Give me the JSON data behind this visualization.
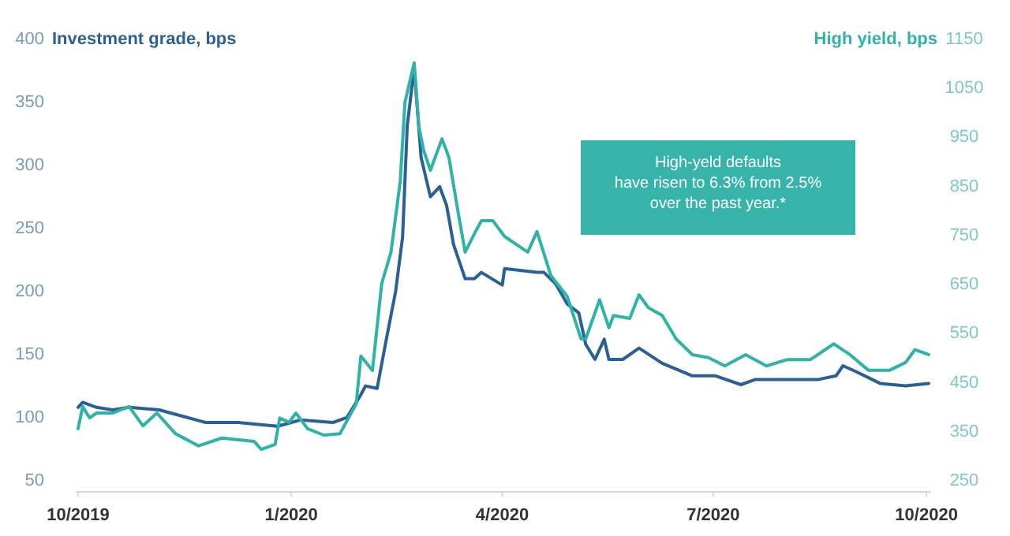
{
  "chart_data": {
    "type": "line",
    "ylabel": "Investment grade, bps",
    "y2label": "High yield, bps",
    "xlim": [
      "2019-09-30",
      "2020-10-03"
    ],
    "xticks": [
      {
        "value": "2019-10-01",
        "label": "10/2019"
      },
      {
        "value": "2020-01-01",
        "label": "1/2020"
      },
      {
        "value": "2020-04-01",
        "label": "4/2020"
      },
      {
        "value": "2020-07-01",
        "label": "7/2020"
      },
      {
        "value": "2020-10-01",
        "label": "10/2020"
      }
    ],
    "ylim": [
      50,
      400
    ],
    "yticks": [
      50,
      100,
      150,
      200,
      250,
      300,
      350,
      400
    ],
    "y2lim": [
      250,
      1150
    ],
    "y2ticks": [
      250,
      350,
      450,
      550,
      650,
      750,
      850,
      950,
      1050,
      1150
    ],
    "grid": false,
    "annotations": [
      "High-yeld defaults have risen to 6.3% from 2.5% over the past year.*"
    ],
    "series": [
      {
        "color": "#2b5f97",
        "x": [
          "2019-10-01",
          "2019-10-03",
          "2019-10-09",
          "2019-10-16",
          "2019-10-23",
          "2019-11-05",
          "2019-11-15",
          "2019-11-25",
          "2019-12-09",
          "2019-12-26",
          "2020-01-05",
          "2020-01-19",
          "2020-01-25",
          "2020-01-31",
          "2020-02-02",
          "2020-02-07",
          "2020-02-11",
          "2020-02-15",
          "2020-02-18",
          "2020-02-20",
          "2020-02-23",
          "2020-02-26",
          "2020-03-01",
          "2020-03-05",
          "2020-03-08",
          "2020-03-11",
          "2020-03-16",
          "2020-03-20",
          "2020-03-23",
          "2020-04-01",
          "2020-04-02",
          "2020-04-16",
          "2020-04-19",
          "2020-04-24",
          "2020-04-29",
          "2020-05-04",
          "2020-05-07",
          "2020-05-11",
          "2020-05-15",
          "2020-05-17",
          "2020-05-23",
          "2020-05-30",
          "2020-06-09",
          "2020-06-22",
          "2020-07-02",
          "2020-07-13",
          "2020-07-19",
          "2020-08-02",
          "2020-08-15",
          "2020-08-23",
          "2020-08-26",
          "2020-09-01",
          "2020-09-11",
          "2020-09-22",
          "2020-10-02"
        ],
        "values": [
          107,
          111,
          107,
          105,
          107,
          105,
          100,
          95,
          95,
          92,
          97,
          95,
          99,
          117,
          124,
          122,
          161,
          199,
          242,
          330,
          376,
          305,
          274,
          282,
          267,
          236,
          209,
          209,
          214,
          204,
          217,
          214,
          214,
          205,
          189,
          182,
          157,
          145,
          161,
          145,
          145,
          154,
          142,
          132,
          132,
          125,
          129,
          129,
          129,
          132,
          140,
          135,
          126,
          124,
          126
        ]
      },
      {
        "axis": "y2",
        "color": "#2fb3a8",
        "x": [
          "2019-10-01",
          "2019-10-03",
          "2019-10-06",
          "2019-10-09",
          "2019-10-16",
          "2019-10-23",
          "2019-10-29",
          "2019-11-04",
          "2019-11-12",
          "2019-11-22",
          "2019-12-02",
          "2019-12-16",
          "2019-12-19",
          "2019-12-25",
          "2019-12-27",
          "2019-12-31",
          "2020-01-03",
          "2020-01-08",
          "2020-01-15",
          "2020-01-22",
          "2020-01-29",
          "2020-01-31",
          "2020-02-05",
          "2020-02-09",
          "2020-02-13",
          "2020-02-17",
          "2020-02-19",
          "2020-02-23",
          "2020-02-25",
          "2020-02-27",
          "2020-03-01",
          "2020-03-06",
          "2020-03-09",
          "2020-03-13",
          "2020-03-16",
          "2020-03-20",
          "2020-03-23",
          "2020-03-28",
          "2020-04-02",
          "2020-04-12",
          "2020-04-16",
          "2020-04-22",
          "2020-04-29",
          "2020-05-05",
          "2020-05-07",
          "2020-05-13",
          "2020-05-17",
          "2020-05-19",
          "2020-05-26",
          "2020-05-30",
          "2020-06-03",
          "2020-06-09",
          "2020-06-15",
          "2020-06-22",
          "2020-06-29",
          "2020-07-06",
          "2020-07-15",
          "2020-07-24",
          "2020-08-02",
          "2020-08-12",
          "2020-08-22",
          "2020-08-29",
          "2020-09-06",
          "2020-09-15",
          "2020-09-22",
          "2020-09-26",
          "2020-10-02"
        ],
        "values": [
          353,
          398,
          375,
          385,
          385,
          398,
          359,
          385,
          343,
          318,
          334,
          327,
          311,
          321,
          375,
          366,
          385,
          353,
          340,
          343,
          404,
          501,
          472,
          649,
          713,
          858,
          1018,
          1099,
          970,
          922,
          880,
          944,
          906,
          793,
          713,
          751,
          777,
          777,
          745,
          713,
          755,
          665,
          623,
          536,
          536,
          616,
          559,
          584,
          578,
          626,
          600,
          584,
          536,
          504,
          498,
          481,
          504,
          481,
          494,
          494,
          526,
          504,
          472,
          472,
          488,
          514,
          504
        ]
      }
    ]
  }
}
